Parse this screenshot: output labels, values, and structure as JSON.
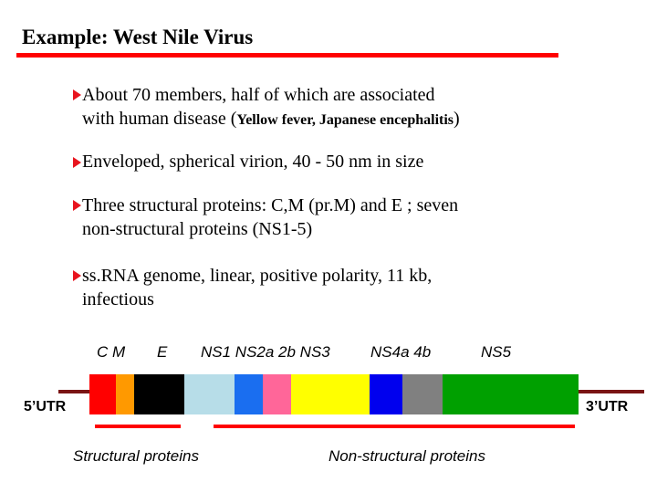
{
  "title": "Example: West Nile Virus",
  "bullets": [
    {
      "line1": "About 70 members, half of which are associated",
      "line2_a": "with human disease (",
      "line2_small": "Yellow fever, Japanese encephalitis",
      "line2_b": ")"
    },
    {
      "line1": "Enveloped, spherical virion, 40 - 50 nm in size"
    },
    {
      "line1": "Three structural proteins:   C,M (pr.M) and E ; seven",
      "line2": "non-structural proteins (NS1-5)"
    },
    {
      "line1": "ss.RNA genome, linear, positive polarity, 11 kb,",
      "line2": "infectious"
    }
  ],
  "genome": {
    "gene_labels": {
      "cm": "C  M",
      "e": "E",
      "ns1_ns3": "NS1 NS2a  2b  NS3",
      "ns4": "NS4a  4b",
      "ns5": "NS5"
    },
    "utr5": "5’UTR",
    "utr3": "3’UTR",
    "segments": [
      {
        "name": "C",
        "color": "#ff0000"
      },
      {
        "name": "M",
        "color": "#ff9900"
      },
      {
        "name": "E",
        "color": "#000000"
      },
      {
        "name": "NS1",
        "color": "#b7dde8"
      },
      {
        "name": "NS2a",
        "color": "#1a6ef0"
      },
      {
        "name": "NS2b",
        "color": "#ff6699"
      },
      {
        "name": "NS3",
        "color": "#ffff00"
      },
      {
        "name": "NS4a",
        "color": "#0000ee"
      },
      {
        "name": "NS4b",
        "color": "#808080"
      },
      {
        "name": "NS5",
        "color": "#00a000"
      }
    ],
    "structural_label": "Structural  proteins",
    "nonstructural_label": "Non-structural proteins"
  },
  "colors": {
    "accent_red": "#ff0000",
    "utr_line": "#7a1414",
    "arrow": "#e8141e"
  }
}
